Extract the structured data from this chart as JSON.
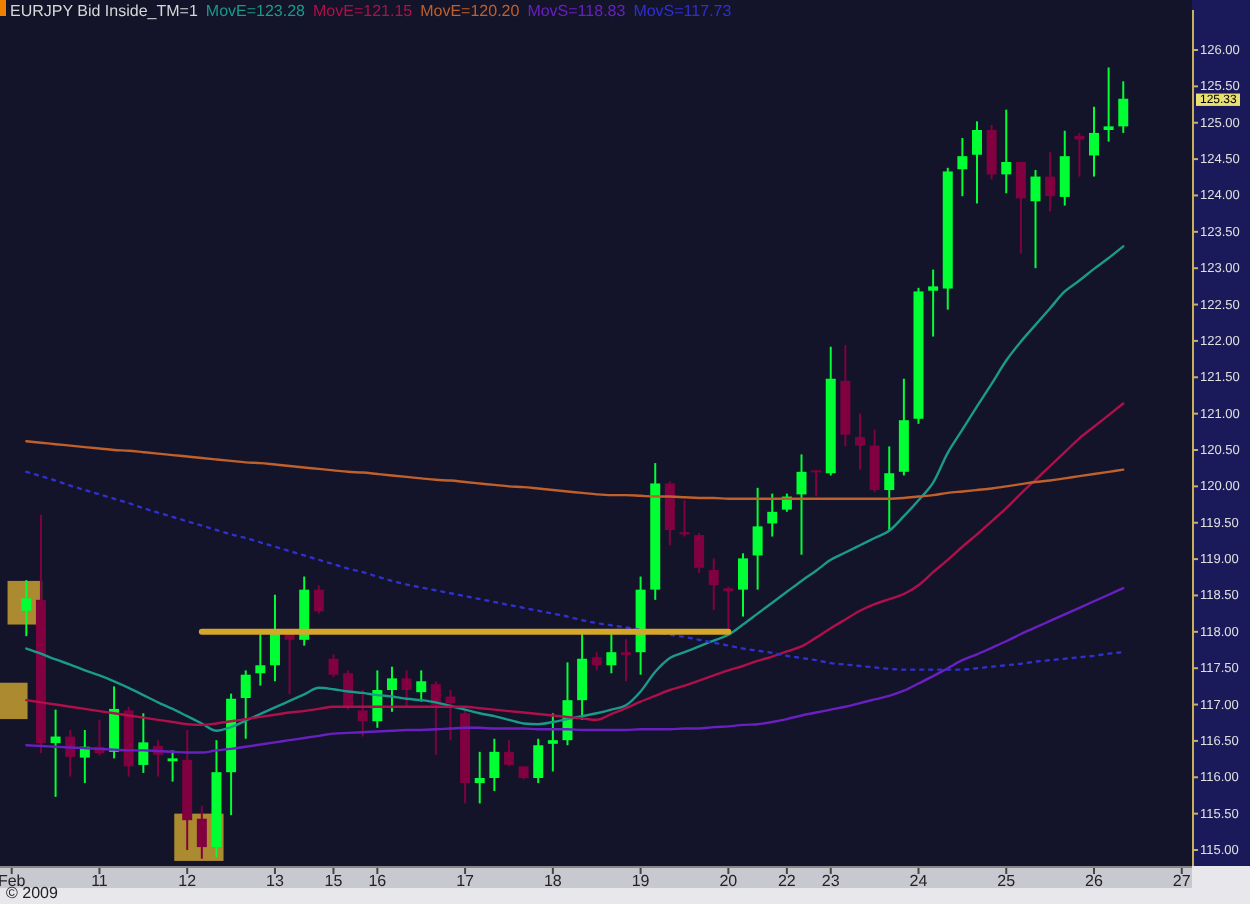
{
  "chart_data": {
    "type": "candlestick",
    "title": "EURJPY Bid Inside_TM=1",
    "legend": "top left",
    "categories": [
      "Feb",
      null,
      null,
      null,
      null,
      null,
      "11",
      null,
      null,
      null,
      null,
      null,
      "12",
      null,
      null,
      null,
      null,
      null,
      "13",
      null,
      null,
      null,
      "15",
      null,
      null,
      "16",
      null,
      null,
      null,
      null,
      null,
      "17",
      null,
      null,
      null,
      null,
      null,
      "18",
      null,
      null,
      null,
      null,
      null,
      "19",
      null,
      null,
      null,
      null,
      null,
      "20",
      null,
      null,
      null,
      "22",
      null,
      null,
      "23",
      null,
      null,
      null,
      null,
      null,
      "24",
      null,
      null,
      null,
      null,
      null,
      "25",
      null,
      null,
      null,
      null,
      null,
      "26",
      null,
      null,
      null,
      null,
      null,
      "27"
    ],
    "ohlc": [
      null,
      [
        118.29,
        118.71,
        117.94,
        118.46
      ],
      [
        118.44,
        119.61,
        116.33,
        116.47
      ],
      [
        116.47,
        116.93,
        115.73,
        116.56
      ],
      [
        116.56,
        116.65,
        116.01,
        116.28
      ],
      [
        116.27,
        116.65,
        115.92,
        116.42
      ],
      [
        116.42,
        116.79,
        116.3,
        116.33
      ],
      [
        116.35,
        117.25,
        116.26,
        116.94
      ],
      [
        116.92,
        116.97,
        116.01,
        116.15
      ],
      [
        116.17,
        116.88,
        116.06,
        116.48
      ],
      [
        116.43,
        116.51,
        116.01,
        116.31
      ],
      [
        116.22,
        116.37,
        115.94,
        116.26
      ],
      [
        116.24,
        116.65,
        115.0,
        115.41
      ],
      [
        115.43,
        115.61,
        114.88,
        115.04
      ],
      [
        115.04,
        116.51,
        114.9,
        116.07
      ],
      [
        116.07,
        117.15,
        115.48,
        117.08
      ],
      [
        117.09,
        117.47,
        116.53,
        117.41
      ],
      [
        117.43,
        117.98,
        117.26,
        117.54
      ],
      [
        117.54,
        118.51,
        117.32,
        117.99
      ],
      [
        117.99,
        118.01,
        117.14,
        117.89
      ],
      [
        117.89,
        118.76,
        117.81,
        118.58
      ],
      [
        118.58,
        118.64,
        118.25,
        118.28
      ],
      [
        117.63,
        117.69,
        117.38,
        117.41
      ],
      [
        117.43,
        117.47,
        116.93,
        116.97
      ],
      [
        116.92,
        117.2,
        116.56,
        116.77
      ],
      [
        116.77,
        117.47,
        116.68,
        117.2
      ],
      [
        117.2,
        117.52,
        116.9,
        117.36
      ],
      [
        117.36,
        117.47,
        116.97,
        117.2
      ],
      [
        117.17,
        117.47,
        117.04,
        117.32
      ],
      [
        117.28,
        117.32,
        116.31,
        116.99
      ],
      [
        117.11,
        117.2,
        116.51,
        117.02
      ],
      [
        116.88,
        116.93,
        115.64,
        115.92
      ],
      [
        115.92,
        116.35,
        115.64,
        115.99
      ],
      [
        115.99,
        116.53,
        115.81,
        116.35
      ],
      [
        116.35,
        116.51,
        116.15,
        116.17
      ],
      [
        116.15,
        116.15,
        115.97,
        115.99
      ],
      [
        115.99,
        116.53,
        115.92,
        116.44
      ],
      [
        116.46,
        116.88,
        116.08,
        116.51
      ],
      [
        116.51,
        117.58,
        116.44,
        117.06
      ],
      [
        117.06,
        117.99,
        116.79,
        117.63
      ],
      [
        117.65,
        117.72,
        117.47,
        117.54
      ],
      [
        117.54,
        117.98,
        117.43,
        117.72
      ],
      [
        117.72,
        117.9,
        117.32,
        117.68
      ],
      [
        117.72,
        118.76,
        117.41,
        118.58
      ],
      [
        118.58,
        120.32,
        118.44,
        120.04
      ],
      [
        120.04,
        120.07,
        119.19,
        119.4
      ],
      [
        119.37,
        119.81,
        119.31,
        119.34
      ],
      [
        119.33,
        119.36,
        118.81,
        118.88
      ],
      [
        118.85,
        119.01,
        118.3,
        118.64
      ],
      [
        118.6,
        118.62,
        117.98,
        118.56
      ],
      [
        118.58,
        119.08,
        118.21,
        119.01
      ],
      [
        119.05,
        119.98,
        118.58,
        119.45
      ],
      [
        119.49,
        119.9,
        119.31,
        119.65
      ],
      [
        119.68,
        119.9,
        119.65,
        119.86
      ],
      [
        119.89,
        120.44,
        119.06,
        120.2
      ],
      [
        120.22,
        120.22,
        119.86,
        120.2
      ],
      [
        120.18,
        121.92,
        120.15,
        121.48
      ],
      [
        121.45,
        121.94,
        120.55,
        120.71
      ],
      [
        120.68,
        121.0,
        120.23,
        120.56
      ],
      [
        120.56,
        120.78,
        119.92,
        119.95
      ],
      [
        119.95,
        120.55,
        119.4,
        120.18
      ],
      [
        120.2,
        121.48,
        120.15,
        120.91
      ],
      [
        120.93,
        122.73,
        120.86,
        122.68
      ],
      [
        122.69,
        122.98,
        122.06,
        122.75
      ],
      [
        122.72,
        124.38,
        122.43,
        124.33
      ],
      [
        124.36,
        124.79,
        123.99,
        124.54
      ],
      [
        124.56,
        125.02,
        123.89,
        124.9
      ],
      [
        124.9,
        124.97,
        124.22,
        124.29
      ],
      [
        124.29,
        125.18,
        124.03,
        124.46
      ],
      [
        124.46,
        124.46,
        123.2,
        123.96
      ],
      [
        123.92,
        124.35,
        123.0,
        124.26
      ],
      [
        124.26,
        124.6,
        123.78,
        123.99
      ],
      [
        123.98,
        124.89,
        123.86,
        124.54
      ],
      [
        124.82,
        124.86,
        124.26,
        124.77
      ],
      [
        124.55,
        125.22,
        124.26,
        124.86
      ],
      [
        124.9,
        125.76,
        124.74,
        124.95
      ],
      [
        124.95,
        125.57,
        124.86,
        125.33
      ],
      null,
      null,
      null,
      null
    ],
    "colors": [
      null,
      "#00ff33",
      "#800040",
      "#00ff33",
      "#800040",
      "#00ff33",
      "#800040",
      "#00ff33",
      "#800040",
      "#00ff33",
      "#800040",
      "#00ff33",
      "#800040",
      "#800040",
      "#00ff33",
      "#00ff33",
      "#00ff33",
      "#00ff33",
      "#00ff33",
      "#800040",
      "#00ff33",
      "#800040",
      "#800040",
      "#800040",
      "#800040",
      "#00ff33",
      "#00ff33",
      "#800040",
      "#00ff33",
      "#800040",
      "#800040",
      "#800040",
      "#00ff33",
      "#00ff33",
      "#800040",
      "#800040",
      "#00ff33",
      "#00ff33",
      "#00ff33",
      "#00ff33",
      "#800040",
      "#00ff33",
      "#800040",
      "#00ff33",
      "#00ff33",
      "#800040",
      "#800040",
      "#800040",
      "#800040",
      "#800040",
      "#00ff33",
      "#00ff33",
      "#00ff33",
      "#00ff33",
      "#00ff33",
      "#800040",
      "#00ff33",
      "#800040",
      "#800040",
      "#800040",
      "#00ff33",
      "#00ff33",
      "#00ff33",
      "#00ff33",
      "#00ff33",
      "#00ff33",
      "#00ff33",
      "#800040",
      "#00ff33",
      "#800040",
      "#00ff33",
      "#800040",
      "#00ff33",
      "#800040",
      "#00ff33",
      "#00ff33",
      "#00ff33",
      null,
      null,
      null,
      null
    ],
    "series": [
      {
        "type": "line",
        "name": "MovE=123.28",
        "color": "#1a9a8a",
        "values": [
          null,
          117.77,
          117.7,
          117.62,
          117.55,
          117.47,
          117.4,
          117.32,
          117.23,
          117.13,
          117.03,
          116.94,
          116.84,
          116.74,
          116.64,
          116.69,
          116.78,
          116.87,
          116.96,
          117.05,
          117.14,
          117.23,
          117.21,
          117.18,
          117.16,
          117.13,
          117.11,
          117.08,
          117.06,
          117.03,
          116.98,
          116.93,
          116.88,
          116.84,
          116.79,
          116.74,
          116.73,
          116.76,
          116.8,
          116.84,
          116.88,
          116.93,
          116.99,
          117.18,
          117.45,
          117.64,
          117.72,
          117.8,
          117.88,
          117.96,
          118.1,
          118.25,
          118.4,
          118.55,
          118.7,
          118.84,
          118.99,
          119.09,
          119.19,
          119.29,
          119.39,
          119.59,
          119.81,
          120.05,
          120.46,
          120.78,
          121.1,
          121.41,
          121.73,
          121.99,
          122.22,
          122.45,
          122.68,
          122.83,
          122.99,
          123.14,
          123.3,
          null,
          null,
          null,
          null
        ]
      },
      {
        "type": "line",
        "name": "MovE=121.15",
        "color": "#b0104a",
        "values": [
          null,
          117.06,
          117.03,
          117.0,
          116.97,
          116.94,
          116.91,
          116.88,
          116.85,
          116.82,
          116.79,
          116.76,
          116.73,
          116.72,
          116.74,
          116.77,
          116.8,
          116.83,
          116.86,
          116.89,
          116.91,
          116.94,
          116.97,
          116.97,
          116.97,
          116.97,
          116.97,
          116.97,
          116.97,
          116.97,
          116.97,
          116.97,
          116.95,
          116.93,
          116.91,
          116.89,
          116.87,
          116.85,
          116.83,
          116.81,
          116.79,
          116.87,
          116.95,
          117.04,
          117.12,
          117.2,
          117.26,
          117.33,
          117.4,
          117.47,
          117.53,
          117.6,
          117.66,
          117.73,
          117.8,
          117.92,
          118.05,
          118.17,
          118.29,
          118.38,
          118.45,
          118.52,
          118.64,
          118.82,
          118.99,
          119.17,
          119.34,
          119.52,
          119.7,
          119.9,
          120.09,
          120.28,
          120.47,
          120.66,
          120.82,
          120.98,
          121.14,
          null,
          null,
          null,
          null
        ]
      },
      {
        "type": "line",
        "name": "MovE=120.20",
        "color": "#c0602a",
        "values": [
          null,
          120.62,
          120.6,
          120.58,
          120.56,
          120.54,
          120.52,
          120.5,
          120.49,
          120.47,
          120.45,
          120.43,
          120.41,
          120.39,
          120.37,
          120.35,
          120.33,
          120.32,
          120.3,
          120.28,
          120.26,
          120.24,
          120.22,
          120.2,
          120.19,
          120.17,
          120.15,
          120.13,
          120.11,
          120.09,
          120.08,
          120.06,
          120.04,
          120.02,
          120.0,
          119.99,
          119.97,
          119.95,
          119.93,
          119.91,
          119.89,
          119.88,
          119.88,
          119.87,
          119.86,
          119.86,
          119.85,
          119.84,
          119.84,
          119.83,
          119.83,
          119.83,
          119.83,
          119.83,
          119.83,
          119.83,
          119.83,
          119.83,
          119.83,
          119.83,
          119.83,
          119.84,
          119.86,
          119.88,
          119.91,
          119.93,
          119.95,
          119.97,
          120.0,
          120.03,
          120.06,
          120.08,
          120.11,
          120.14,
          120.17,
          120.2,
          120.23,
          null,
          null,
          null,
          null
        ]
      },
      {
        "type": "line",
        "name": "MovS=118.83",
        "color": "#6a20c0",
        "values": [
          null,
          116.44,
          116.43,
          116.42,
          116.41,
          116.4,
          116.39,
          116.38,
          116.37,
          116.37,
          116.36,
          116.35,
          116.34,
          116.34,
          116.37,
          116.39,
          116.42,
          116.45,
          116.48,
          116.51,
          116.54,
          116.57,
          116.6,
          116.61,
          116.62,
          116.63,
          116.64,
          116.65,
          116.65,
          116.66,
          116.67,
          116.68,
          116.68,
          116.67,
          116.67,
          116.67,
          116.66,
          116.66,
          116.66,
          116.65,
          116.65,
          116.65,
          116.65,
          116.66,
          116.66,
          116.66,
          116.67,
          116.67,
          116.69,
          116.7,
          116.72,
          116.73,
          116.76,
          116.8,
          116.85,
          116.89,
          116.93,
          116.97,
          117.02,
          117.07,
          117.12,
          117.19,
          117.29,
          117.39,
          117.5,
          117.61,
          117.69,
          117.78,
          117.87,
          117.97,
          118.06,
          118.15,
          118.24,
          118.33,
          118.42,
          118.51,
          118.6,
          null,
          null,
          null,
          null
        ]
      },
      {
        "type": "line",
        "name": "MovS=117.73",
        "color": "#3030d0",
        "line_style": "dotted",
        "values": [
          null,
          120.2,
          120.14,
          120.08,
          120.01,
          119.95,
          119.89,
          119.83,
          119.77,
          119.7,
          119.64,
          119.58,
          119.52,
          119.46,
          119.4,
          119.34,
          119.29,
          119.23,
          119.17,
          119.11,
          119.05,
          118.99,
          118.93,
          118.87,
          118.82,
          118.76,
          118.7,
          118.65,
          118.61,
          118.57,
          118.53,
          118.49,
          118.45,
          118.41,
          118.37,
          118.33,
          118.29,
          118.25,
          118.21,
          118.16,
          118.12,
          118.09,
          118.06,
          118.03,
          118.0,
          117.96,
          117.93,
          117.89,
          117.85,
          117.81,
          117.77,
          117.74,
          117.71,
          117.67,
          117.64,
          117.61,
          117.57,
          117.55,
          117.53,
          117.51,
          117.49,
          117.48,
          117.48,
          117.48,
          117.48,
          117.48,
          117.5,
          117.52,
          117.54,
          117.56,
          117.59,
          117.61,
          117.63,
          117.65,
          117.67,
          117.7,
          117.72,
          null,
          null,
          null,
          null
        ]
      },
      {
        "type": "line",
        "color": "#d4a62a",
        "values": [
          null,
          null,
          null,
          null,
          null,
          null,
          null,
          null,
          null,
          null,
          null,
          null,
          null,
          118,
          118,
          118,
          118,
          118,
          118,
          118,
          118,
          118,
          118,
          118,
          118,
          118,
          118,
          118,
          118,
          118,
          118,
          118,
          118,
          118,
          118,
          118,
          118,
          118,
          118,
          118,
          118,
          118,
          118,
          118,
          118,
          118,
          118,
          118,
          118,
          118,
          null,
          null,
          null,
          null,
          null,
          null,
          null,
          null,
          null,
          null,
          null,
          null,
          null,
          null,
          null,
          null,
          null,
          null,
          null,
          null,
          null,
          null,
          null,
          null,
          null,
          null,
          null,
          null,
          null,
          null,
          null
        ]
      }
    ],
    "ylim": [
      114.78,
      126.55
    ],
    "yticks": [
      {
        "value": 115,
        "label": "115.00"
      },
      {
        "value": 115.5,
        "label": "115.50"
      },
      {
        "value": 116,
        "label": "116.00"
      },
      {
        "value": 116.5,
        "label": "116.50"
      },
      {
        "value": 117,
        "label": "117.00"
      },
      {
        "value": 117.5,
        "label": "117.50"
      },
      {
        "value": 118,
        "label": "118.00"
      },
      {
        "value": 118.5,
        "label": "118.50"
      },
      {
        "value": 119,
        "label": "119.00"
      },
      {
        "value": 119.5,
        "label": "119.50"
      },
      {
        "value": 120,
        "label": "120.00"
      },
      {
        "value": 120.5,
        "label": "120.50"
      },
      {
        "value": 121,
        "label": "121.00"
      },
      {
        "value": 121.5,
        "label": "121.50"
      },
      {
        "value": 122,
        "label": "122.00"
      },
      {
        "value": 122.5,
        "label": "122.50"
      },
      {
        "value": 123,
        "label": "123.00"
      },
      {
        "value": 123.5,
        "label": "123.50"
      },
      {
        "value": 124,
        "label": "124.00"
      },
      {
        "value": 124.5,
        "label": "124.50"
      },
      {
        "value": 125,
        "label": "125.00"
      },
      {
        "value": 125.5,
        "label": "125.50"
      },
      {
        "value": 126,
        "label": "126.00"
      }
    ],
    "grid": false,
    "annotations": [
      "125.33",
      "© 2009"
    ]
  }
}
